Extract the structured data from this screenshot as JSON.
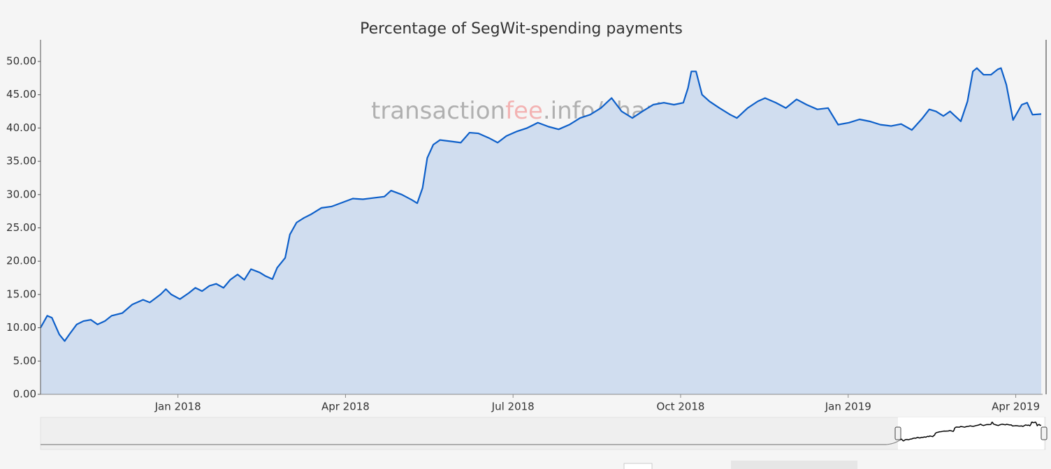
{
  "chart_data": {
    "type": "area",
    "title": "Percentage of SegWit-spending payments",
    "watermark": [
      "transaction",
      "fee",
      ".info/charts"
    ],
    "x": [
      2017.795,
      2017.805,
      2017.812,
      2017.823,
      2017.831,
      2017.838,
      2017.849,
      2017.859,
      2017.87,
      2017.88,
      2017.891,
      2017.901,
      2017.917,
      2017.932,
      2017.948,
      2017.958,
      2017.974,
      2017.982,
      2017.99,
      2018.003,
      2018.016,
      2018.026,
      2018.036,
      2018.047,
      2018.057,
      2018.068,
      2018.078,
      2018.089,
      2018.099,
      2018.109,
      2018.122,
      2018.13,
      2018.141,
      2018.148,
      2018.16,
      2018.167,
      2018.177,
      2018.188,
      2018.198,
      2018.214,
      2018.229,
      2018.245,
      2018.261,
      2018.276,
      2018.292,
      2018.308,
      2018.318,
      2018.334,
      2018.349,
      2018.357,
      2018.365,
      2018.372,
      2018.381,
      2018.391,
      2018.407,
      2018.422,
      2018.435,
      2018.448,
      2018.464,
      2018.477,
      2018.49,
      2018.506,
      2018.521,
      2018.537,
      2018.553,
      2018.568,
      2018.584,
      2018.6,
      2018.615,
      2018.631,
      2018.647,
      2018.662,
      2018.678,
      2018.693,
      2018.709,
      2018.725,
      2018.74,
      2018.754,
      2018.761,
      2018.766,
      2018.773,
      2018.782,
      2018.793,
      2018.808,
      2018.824,
      2018.834,
      2018.85,
      2018.865,
      2018.876,
      2018.892,
      2018.907,
      2018.923,
      2018.938,
      2018.954,
      2018.97,
      2018.985,
      2019.001,
      2019.017,
      2019.032,
      2019.048,
      2019.064,
      2019.079,
      2019.095,
      2019.111,
      2019.121,
      2019.131,
      2019.142,
      2019.152,
      2019.168,
      2019.178,
      2019.186,
      2019.192,
      2019.202,
      2019.213,
      2019.223,
      2019.228,
      2019.236,
      2019.246,
      2019.259,
      2019.267,
      2019.275,
      2019.288
    ],
    "values": [
      10.0,
      11.8,
      11.5,
      9.0,
      8.0,
      9.0,
      10.5,
      11.0,
      11.2,
      10.5,
      11.0,
      11.8,
      12.2,
      13.5,
      14.2,
      13.8,
      15.0,
      15.8,
      15.0,
      14.3,
      15.2,
      16.0,
      15.5,
      16.3,
      16.6,
      16.0,
      17.2,
      18.0,
      17.2,
      18.8,
      18.3,
      17.8,
      17.3,
      19.0,
      20.5,
      24.0,
      25.8,
      26.5,
      27.0,
      28.0,
      28.2,
      28.8,
      29.4,
      29.3,
      29.5,
      29.7,
      30.6,
      30.0,
      29.2,
      28.7,
      31.0,
      35.5,
      37.5,
      38.2,
      38.0,
      37.8,
      39.3,
      39.2,
      38.5,
      37.8,
      38.8,
      39.5,
      40.0,
      40.8,
      40.2,
      39.8,
      40.5,
      41.5,
      42.0,
      43.0,
      44.5,
      42.5,
      41.5,
      42.5,
      43.5,
      43.8,
      43.5,
      43.8,
      46.0,
      48.5,
      48.5,
      45.0,
      44.0,
      43.0,
      42.0,
      41.5,
      43.0,
      44.0,
      44.5,
      43.8,
      43.0,
      44.3,
      43.5,
      42.8,
      43.0,
      40.5,
      40.8,
      41.3,
      41.0,
      40.5,
      40.3,
      40.6,
      39.7,
      41.5,
      42.8,
      42.5,
      41.8,
      42.5,
      41.0,
      44.0,
      48.5,
      49.0,
      48.0,
      48.0,
      48.8,
      49.0,
      46.5,
      41.2,
      43.5,
      43.8,
      42.0,
      42.1
    ],
    "color": "#0d5fc9",
    "fill_color": "#d0ddef",
    "xlim": [
      2017.795,
      2019.288
    ],
    "xticks": [
      {
        "value": 2018.0,
        "label": "Jan 2018"
      },
      {
        "value": 2018.25,
        "label": "Apr 2018"
      },
      {
        "value": 2018.5,
        "label": "Jul 2018"
      },
      {
        "value": 2018.75,
        "label": "Oct 2018"
      },
      {
        "value": 2019.0,
        "label": "Jan 2019"
      },
      {
        "value": 2019.25,
        "label": "Apr 2019"
      }
    ],
    "ylim": [
      0,
      53.25
    ],
    "yticks": [
      {
        "value": 0,
        "label": "0.00"
      },
      {
        "value": 5,
        "label": "5.00"
      },
      {
        "value": 10,
        "label": "10.00"
      },
      {
        "value": 15,
        "label": "15.00"
      },
      {
        "value": 20,
        "label": "20.00"
      },
      {
        "value": 25,
        "label": "25.00"
      },
      {
        "value": 30,
        "label": "30.00"
      },
      {
        "value": 35,
        "label": "35.00"
      },
      {
        "value": 40,
        "label": "40.00"
      },
      {
        "value": 45,
        "label": "45.00"
      },
      {
        "value": 50,
        "label": "50.00"
      }
    ]
  }
}
